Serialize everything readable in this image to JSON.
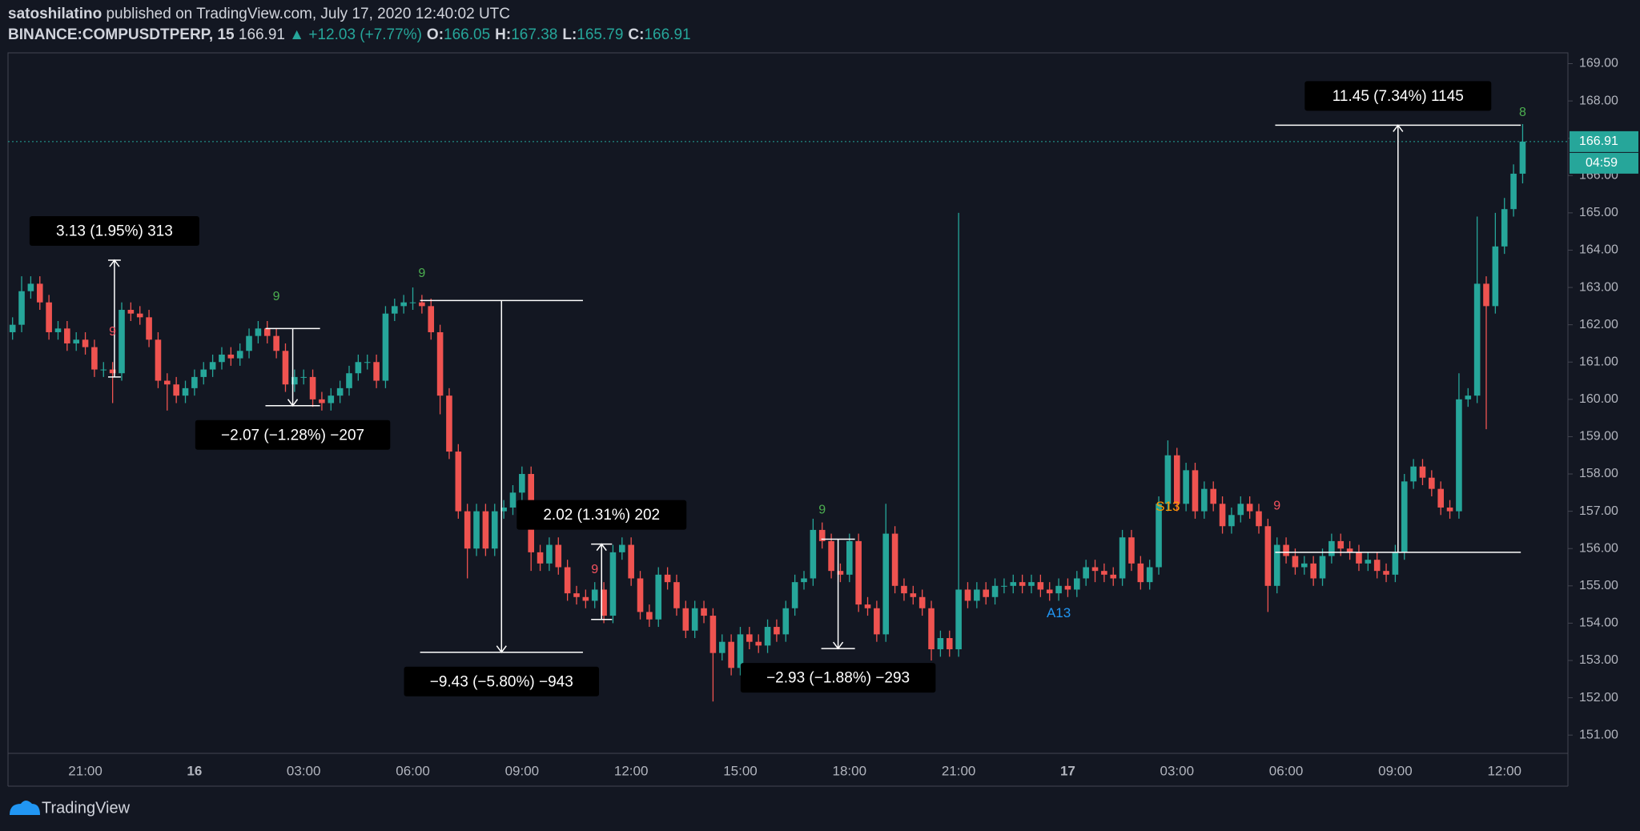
{
  "header": {
    "author": "satoshilatino",
    "published": "published on TradingView.com, July 17, 2020 12:40:02 UTC",
    "symbol": "BINANCE:COMPUSDTPERP, 15",
    "last": "166.91",
    "change": "▲ +12.03 (+7.77%)",
    "ohlc": [
      {
        "label": "O:",
        "value": "166.05"
      },
      {
        "label": "H:",
        "value": "167.38"
      },
      {
        "label": "L:",
        "value": "165.79"
      },
      {
        "label": "C:",
        "value": "166.91"
      }
    ]
  },
  "chart_data": {
    "type": "candlestick",
    "categories": [
      null,
      null,
      null,
      null,
      null,
      null,
      null,
      null,
      "21:00",
      null,
      null,
      null,
      null,
      null,
      null,
      null,
      null,
      null,
      null,
      null,
      "16",
      null,
      null,
      null,
      null,
      null,
      null,
      null,
      null,
      null,
      null,
      null,
      "03:00",
      null,
      null,
      null,
      null,
      null,
      null,
      null,
      null,
      null,
      null,
      null,
      "06:00",
      null,
      null,
      null,
      null,
      null,
      null,
      null,
      null,
      null,
      null,
      null,
      "09:00",
      null,
      null,
      null,
      null,
      null,
      null,
      null,
      null,
      null,
      null,
      null,
      "12:00",
      null,
      null,
      null,
      null,
      null,
      null,
      null,
      null,
      null,
      null,
      null,
      "15:00",
      null,
      null,
      null,
      null,
      null,
      null,
      null,
      null,
      null,
      null,
      null,
      "18:00",
      null,
      null,
      null,
      null,
      null,
      null,
      null,
      null,
      null,
      null,
      null,
      "21:00",
      null,
      null,
      null,
      null,
      null,
      null,
      null,
      null,
      null,
      null,
      null,
      "17",
      null,
      null,
      null,
      null,
      null,
      null,
      null,
      null,
      null,
      null,
      null,
      "03:00",
      null,
      null,
      null,
      null,
      null,
      null,
      null,
      null,
      null,
      null,
      null,
      "06:00",
      null,
      null,
      null,
      null,
      null,
      null,
      null,
      null,
      null,
      null,
      null,
      "09:00",
      null,
      null,
      null,
      null,
      null,
      null,
      null,
      null,
      null,
      null,
      null,
      "12:00",
      null,
      null
    ],
    "open": [
      161.8,
      162.0,
      162.9,
      163.1,
      162.6,
      161.8,
      161.9,
      161.5,
      161.6,
      161.4,
      160.8,
      160.8,
      160.7,
      162.4,
      162.3,
      162.2,
      161.6,
      160.5,
      160.4,
      160.1,
      160.3,
      160.6,
      160.8,
      161.0,
      161.2,
      161.1,
      161.3,
      161.7,
      161.9,
      161.7,
      161.3,
      160.4,
      160.6,
      160.6,
      160.0,
      159.9,
      160.1,
      160.3,
      160.7,
      161.0,
      161.0,
      160.5,
      162.3,
      162.5,
      162.6,
      162.6,
      162.5,
      161.8,
      160.1,
      158.6,
      157.0,
      156.0,
      157.0,
      156.0,
      157.0,
      157.1,
      157.5,
      158.0,
      155.9,
      155.6,
      156.1,
      155.5,
      154.8,
      154.7,
      154.6,
      154.9,
      154.2,
      155.9,
      156.1,
      155.2,
      154.3,
      154.1,
      155.3,
      155.1,
      154.4,
      153.8,
      154.4,
      154.2,
      153.2,
      153.5,
      152.8,
      153.7,
      153.5,
      153.4,
      153.9,
      153.7,
      154.4,
      155.1,
      155.2,
      156.5,
      156.2,
      155.4,
      155.3,
      156.2,
      154.5,
      154.4,
      153.7,
      156.4,
      155.0,
      154.8,
      154.7,
      154.4,
      153.3,
      153.6,
      153.3,
      154.9,
      154.6,
      154.9,
      154.7,
      155.0,
      155.0,
      155.1,
      155.0,
      155.1,
      154.9,
      154.8,
      155.0,
      154.9,
      155.2,
      155.5,
      155.4,
      155.3,
      155.2,
      156.3,
      155.6,
      155.1,
      155.5,
      157.2,
      158.5,
      157.2,
      158.1,
      157.0,
      157.6,
      157.2,
      156.6,
      156.9,
      157.2,
      157.0,
      156.6,
      155.0,
      156.1,
      155.8,
      155.5,
      155.6,
      155.2,
      155.8,
      156.2,
      156.0,
      155.9,
      155.6,
      155.7,
      155.4,
      155.3,
      155.9,
      157.8,
      158.2,
      157.9,
      157.6,
      157.1,
      157.0,
      160.0,
      160.1,
      163.1,
      162.5,
      164.1,
      165.1,
      166.05
    ],
    "high": [
      162.2,
      163.3,
      163.3,
      163.3,
      162.8,
      162.1,
      162.1,
      161.8,
      161.8,
      161.6,
      161.0,
      161.0,
      162.6,
      162.6,
      162.5,
      162.4,
      161.8,
      160.7,
      160.6,
      160.5,
      160.8,
      161.0,
      161.2,
      161.4,
      161.4,
      161.5,
      161.9,
      162.1,
      162.1,
      161.9,
      161.5,
      160.8,
      160.8,
      160.8,
      160.2,
      160.3,
      160.5,
      160.9,
      161.2,
      161.2,
      161.2,
      162.5,
      162.7,
      162.8,
      163.0,
      162.8,
      162.7,
      162.0,
      160.3,
      158.8,
      157.2,
      157.2,
      157.2,
      157.2,
      157.3,
      157.7,
      158.2,
      158.2,
      156.1,
      156.3,
      156.3,
      155.7,
      155.0,
      154.9,
      155.1,
      155.1,
      156.1,
      156.3,
      156.3,
      155.4,
      154.5,
      155.5,
      155.5,
      155.3,
      154.6,
      154.6,
      154.6,
      154.4,
      153.7,
      153.7,
      153.9,
      153.9,
      153.7,
      154.1,
      154.1,
      154.6,
      155.3,
      155.4,
      156.8,
      156.7,
      156.4,
      155.6,
      156.4,
      156.4,
      154.7,
      154.6,
      157.2,
      156.6,
      155.2,
      155.0,
      154.9,
      154.6,
      153.8,
      153.8,
      165.0,
      155.1,
      155.1,
      155.1,
      155.2,
      155.2,
      155.3,
      155.3,
      155.3,
      155.3,
      155.1,
      155.2,
      155.2,
      155.4,
      155.7,
      155.7,
      155.6,
      155.5,
      156.5,
      156.5,
      155.8,
      155.7,
      157.4,
      158.9,
      158.7,
      158.3,
      158.3,
      157.8,
      157.8,
      157.4,
      157.1,
      157.4,
      157.4,
      157.2,
      156.8,
      156.3,
      156.3,
      156.0,
      155.8,
      155.8,
      156.0,
      156.4,
      156.4,
      156.2,
      156.1,
      155.9,
      155.9,
      155.6,
      156.1,
      158.0,
      158.4,
      158.4,
      158.1,
      157.8,
      157.3,
      160.7,
      160.3,
      164.9,
      163.3,
      165.0,
      165.4,
      166.3,
      167.38
    ],
    "low": [
      161.6,
      161.8,
      162.7,
      162.4,
      161.6,
      161.6,
      161.3,
      161.3,
      161.2,
      160.6,
      160.6,
      159.9,
      160.5,
      162.1,
      162.0,
      161.4,
      160.3,
      159.7,
      159.9,
      159.9,
      160.1,
      160.4,
      160.6,
      160.8,
      160.9,
      160.9,
      161.1,
      161.5,
      161.5,
      161.1,
      160.2,
      160.2,
      160.4,
      159.8,
      159.7,
      159.7,
      159.9,
      160.1,
      160.5,
      160.8,
      160.3,
      160.3,
      162.1,
      162.3,
      162.4,
      162.3,
      161.6,
      159.6,
      158.4,
      156.8,
      155.2,
      155.8,
      155.8,
      155.8,
      156.8,
      156.9,
      157.3,
      155.4,
      155.4,
      155.4,
      155.3,
      154.6,
      154.5,
      154.4,
      154.4,
      154.0,
      154.0,
      155.7,
      155.0,
      154.1,
      153.9,
      153.9,
      154.9,
      154.2,
      153.6,
      153.6,
      154.0,
      151.9,
      153.0,
      152.6,
      152.6,
      153.3,
      153.2,
      153.2,
      153.5,
      153.5,
      154.2,
      154.9,
      155.0,
      156.0,
      155.2,
      155.1,
      155.1,
      154.3,
      154.2,
      153.5,
      153.5,
      154.8,
      154.6,
      154.5,
      154.2,
      153.0,
      153.1,
      153.1,
      153.1,
      154.4,
      154.4,
      154.5,
      154.5,
      154.8,
      154.8,
      154.8,
      154.8,
      154.7,
      154.6,
      154.6,
      154.7,
      154.7,
      155.0,
      155.1,
      155.1,
      155.0,
      155.0,
      155.4,
      154.9,
      154.9,
      155.3,
      157.0,
      157.0,
      157.0,
      156.8,
      156.8,
      157.0,
      156.4,
      156.4,
      156.7,
      156.8,
      156.4,
      154.3,
      154.8,
      155.6,
      155.3,
      155.3,
      155.0,
      155.0,
      155.6,
      155.8,
      155.7,
      155.4,
      155.4,
      155.2,
      155.1,
      155.1,
      155.7,
      157.6,
      157.7,
      157.4,
      156.9,
      156.8,
      156.8,
      159.8,
      159.9,
      159.2,
      162.3,
      163.9,
      164.9,
      165.79
    ],
    "close": [
      162.0,
      162.9,
      163.1,
      162.6,
      161.8,
      161.9,
      161.5,
      161.6,
      161.4,
      160.8,
      160.8,
      160.7,
      162.4,
      162.3,
      162.2,
      161.6,
      160.5,
      160.4,
      160.1,
      160.3,
      160.6,
      160.8,
      161.0,
      161.2,
      161.1,
      161.3,
      161.7,
      161.9,
      161.7,
      161.3,
      160.4,
      160.6,
      160.6,
      160.0,
      159.9,
      160.1,
      160.3,
      160.7,
      161.0,
      161.0,
      160.5,
      162.3,
      162.5,
      162.6,
      162.6,
      162.5,
      161.8,
      160.1,
      158.6,
      157.0,
      156.0,
      157.0,
      156.0,
      157.0,
      157.1,
      157.5,
      158.0,
      155.9,
      155.6,
      156.1,
      155.5,
      154.8,
      154.7,
      154.6,
      154.9,
      154.2,
      155.9,
      156.1,
      155.2,
      154.3,
      154.1,
      155.3,
      155.1,
      154.4,
      153.8,
      154.4,
      154.2,
      153.2,
      153.5,
      152.8,
      153.7,
      153.5,
      153.4,
      153.9,
      153.7,
      154.4,
      155.1,
      155.2,
      156.5,
      156.2,
      155.4,
      155.3,
      156.2,
      154.5,
      154.4,
      153.7,
      156.4,
      155.0,
      154.8,
      154.7,
      154.4,
      153.3,
      153.6,
      153.3,
      154.9,
      154.6,
      154.9,
      154.7,
      155.0,
      155.0,
      155.1,
      155.0,
      155.1,
      154.9,
      154.8,
      155.0,
      154.9,
      155.2,
      155.5,
      155.4,
      155.3,
      155.2,
      156.3,
      155.6,
      155.1,
      155.5,
      157.2,
      158.5,
      157.2,
      158.1,
      157.0,
      157.6,
      157.2,
      156.6,
      156.9,
      157.2,
      157.0,
      156.6,
      155.0,
      156.1,
      155.8,
      155.5,
      155.6,
      155.2,
      155.8,
      156.2,
      156.0,
      155.9,
      155.6,
      155.7,
      155.4,
      155.3,
      155.9,
      157.8,
      158.2,
      157.9,
      157.6,
      157.1,
      157.0,
      160.0,
      160.1,
      163.1,
      162.5,
      164.1,
      165.1,
      166.05,
      166.91
    ],
    "up_color": "#26a69a",
    "down_color": "#ef5350",
    "ylim": [
      150.51,
      169.29
    ],
    "yticks": [
      {
        "value": 151,
        "label": "151.00"
      },
      {
        "value": 152,
        "label": "152.00"
      },
      {
        "value": 153,
        "label": "153.00"
      },
      {
        "value": 154,
        "label": "154.00"
      },
      {
        "value": 155,
        "label": "155.00"
      },
      {
        "value": 156,
        "label": "156.00"
      },
      {
        "value": 157,
        "label": "157.00"
      },
      {
        "value": 158,
        "label": "158.00"
      },
      {
        "value": 159,
        "label": "159.00"
      },
      {
        "value": 160,
        "label": "160.00"
      },
      {
        "value": 161,
        "label": "161.00"
      },
      {
        "value": 162,
        "label": "162.00"
      },
      {
        "value": 163,
        "label": "163.00"
      },
      {
        "value": 164,
        "label": "164.00"
      },
      {
        "value": 165,
        "label": "165.00"
      },
      {
        "value": 166,
        "label": "166.00"
      },
      {
        "value": 167,
        "label": "167.00"
      },
      {
        "value": 168,
        "label": "168.00"
      },
      {
        "value": 169,
        "label": "169.00"
      }
    ],
    "grid": false,
    "price_line": {
      "value": 166.91,
      "label": "166.91",
      "timer": "04:59",
      "color": "#26a69a"
    },
    "measures": [
      {
        "label": "3.13 (1.95%) 313",
        "x": [
          11,
          12.4
        ],
        "y": [
          160.6,
          163.73
        ]
      },
      {
        "label": "−2.07 (−1.28%) −207",
        "x": [
          28.3,
          34.3
        ],
        "y": [
          161.9,
          159.83
        ]
      },
      {
        "label": "−9.43 (−5.80%) −943",
        "x": [
          45.3,
          63.2
        ],
        "y": [
          162.65,
          153.22
        ]
      },
      {
        "label": "2.02 (1.31%) 202",
        "x": [
          64.1,
          66.4
        ],
        "y": [
          154.1,
          156.12
        ]
      },
      {
        "label": "−2.93 (−1.88%) −293",
        "x": [
          89.4,
          93.1
        ],
        "y": [
          156.25,
          153.32
        ]
      },
      {
        "label": "11.45 (7.34%) 1145",
        "x": [
          139.3,
          166.3
        ],
        "y": [
          155.9,
          167.35
        ]
      }
    ],
    "markers": [
      {
        "label": "9",
        "index": 11,
        "price": 161.8,
        "color": "#f7525f"
      },
      {
        "label": "9",
        "index": 29,
        "price": 162.75,
        "color": "#4caf50"
      },
      {
        "label": "9",
        "index": 45,
        "price": 163.37,
        "color": "#4caf50"
      },
      {
        "label": "9",
        "index": 64,
        "price": 155.43,
        "color": "#f7525f"
      },
      {
        "label": "9",
        "index": 89,
        "price": 157.03,
        "color": "#4caf50"
      },
      {
        "label": "A13",
        "index": 115,
        "price": 154.25,
        "color": "#2196f3"
      },
      {
        "label": "S13",
        "index": 127,
        "price": 157.11,
        "color": "#ff9800"
      },
      {
        "label": "9",
        "index": 139,
        "price": 157.14,
        "color": "#f7525f"
      },
      {
        "label": "8",
        "index": 166,
        "price": 167.68,
        "color": "#4caf50"
      }
    ]
  },
  "footer": {
    "brand": "TradingView"
  }
}
